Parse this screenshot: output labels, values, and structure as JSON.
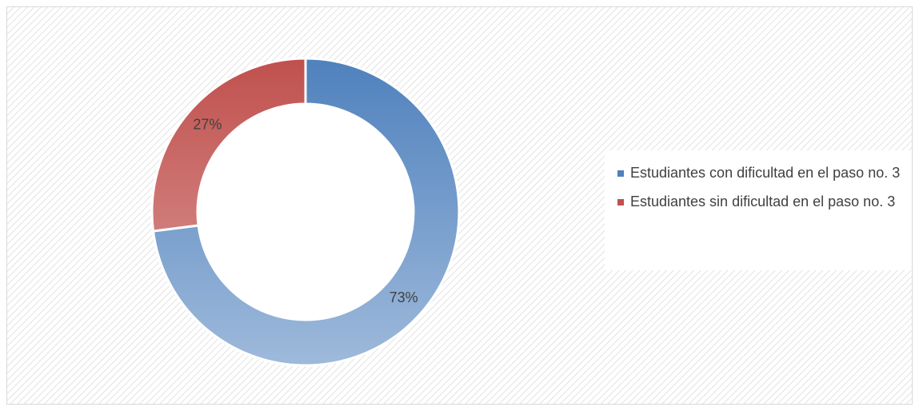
{
  "chart_data": {
    "type": "donut",
    "categories": [
      "Estudiantes con dificultad en el paso no. 3",
      "Estudiantes sin dificultad en el paso no. 3"
    ],
    "values": [
      73,
      27
    ],
    "value_labels": [
      "73%",
      "27%"
    ],
    "colors": [
      "#4f81bd",
      "#c0504d"
    ],
    "legend": "right"
  }
}
